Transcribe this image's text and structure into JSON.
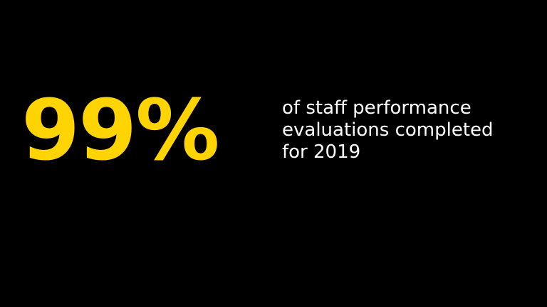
{
  "stat": {
    "value": "99%",
    "caption_lines": [
      "of staff performance",
      "evaluations completed",
      "for 2019"
    ]
  },
  "colors": {
    "background": "#000000",
    "accent": "#FFD400",
    "text": "#FFFFFF"
  }
}
